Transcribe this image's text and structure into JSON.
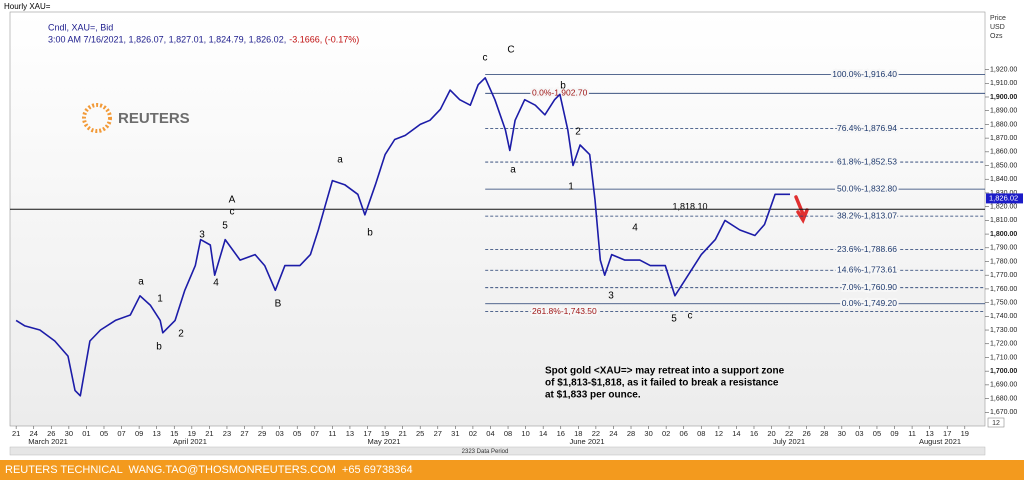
{
  "chart_data": {
    "type": "line",
    "title": "Hourly XAU=",
    "instrument": "Cndl, XAU=, Bid",
    "quote": "3:00 AM 7/16/2021, 1,826.07, 1,827.01, 1,824.79, 1,826.02,",
    "change": "-3.1666, (-0.17%)",
    "axis_unit": [
      "Price",
      "USD",
      "Ozs"
    ],
    "logo": "REUTERS",
    "color": "#1c1ca8",
    "x": [
      0,
      1,
      2.7,
      4.4,
      5.9,
      6.7,
      7.3,
      8.4,
      9.6,
      11.3,
      13,
      14.1,
      15.3,
      16.4,
      16.7,
      18.1,
      19.2,
      20.4,
      21,
      22.1,
      22.6,
      23.8,
      25.5,
      27.2,
      28.3,
      29.5,
      30.6,
      32.3,
      33.5,
      34.4,
      35.2,
      36,
      37.4,
      38.9,
      39.7,
      40.9,
      42,
      43.1,
      44.3,
      46,
      47.1,
      48.3,
      49.4,
      50.5,
      51.7,
      52.6,
      53.4,
      54.5,
      55.7,
      56.2,
      56.8,
      57.9,
      59.1,
      60.2,
      61.3,
      61.9,
      62.8,
      63.4,
      64.2,
      65.3,
      65.9,
      66.5,
      67,
      67.8,
      69.3,
      71,
      72.2,
      73.9,
      75,
      76.1,
      78,
      79.6,
      80.7,
      82.4,
      84.1,
      85.2,
      86.4,
      88.1
    ],
    "values": [
      1737,
      1733,
      1730,
      1722,
      1711,
      1686,
      1682,
      1722,
      1730,
      1737,
      1741,
      1755,
      1748,
      1737,
      1728,
      1737,
      1759,
      1777,
      1796,
      1792,
      1770,
      1796,
      1781,
      1785,
      1777,
      1759,
      1777,
      1777,
      1785,
      1803,
      1821,
      1839,
      1836,
      1829,
      1814,
      1836,
      1858,
      1869,
      1872,
      1880,
      1883,
      1891,
      1905,
      1898,
      1894,
      1909,
      1914,
      1898,
      1876,
      1861,
      1883,
      1898,
      1894,
      1887,
      1898,
      1902,
      1876,
      1850,
      1865,
      1858,
      1825,
      1781,
      1770,
      1785,
      1781,
      1781,
      1777,
      1777,
      1755,
      1766,
      1785,
      1796,
      1810,
      1803,
      1799,
      1807,
      1829,
      1829
    ],
    "xlim": [
      -0.7,
      110.3
    ],
    "ylim": [
      1660,
      1962
    ],
    "xticks": [
      {
        "value": 0,
        "label": "21"
      },
      {
        "value": 2,
        "label": "24"
      },
      {
        "value": 4,
        "label": "26"
      },
      {
        "value": 6,
        "label": "30"
      },
      {
        "value": 8,
        "label": "01"
      },
      {
        "value": 10,
        "label": "05"
      },
      {
        "value": 12,
        "label": "07"
      },
      {
        "value": 14,
        "label": "09"
      },
      {
        "value": 16,
        "label": "13"
      },
      {
        "value": 18,
        "label": "15"
      },
      {
        "value": 20,
        "label": "19"
      },
      {
        "value": 22,
        "label": "21"
      },
      {
        "value": 24,
        "label": "23"
      },
      {
        "value": 26,
        "label": "27"
      },
      {
        "value": 28,
        "label": "29"
      },
      {
        "value": 30,
        "label": "03"
      },
      {
        "value": 32,
        "label": "05"
      },
      {
        "value": 34,
        "label": "07"
      },
      {
        "value": 36,
        "label": "11"
      },
      {
        "value": 38,
        "label": "13"
      },
      {
        "value": 40,
        "label": "17"
      },
      {
        "value": 42,
        "label": "19"
      },
      {
        "value": 44,
        "label": "21"
      },
      {
        "value": 46,
        "label": "25"
      },
      {
        "value": 48,
        "label": "27"
      },
      {
        "value": 50,
        "label": "31"
      },
      {
        "value": 52,
        "label": "02"
      },
      {
        "value": 54,
        "label": "04"
      },
      {
        "value": 56,
        "label": "08"
      },
      {
        "value": 58,
        "label": "10"
      },
      {
        "value": 60,
        "label": "14"
      },
      {
        "value": 62,
        "label": "16"
      },
      {
        "value": 64,
        "label": "18"
      },
      {
        "value": 66,
        "label": "22"
      },
      {
        "value": 68,
        "label": "24"
      },
      {
        "value": 70,
        "label": "28"
      },
      {
        "value": 72,
        "label": "30"
      },
      {
        "value": 74,
        "label": "02"
      },
      {
        "value": 76,
        "label": "06"
      },
      {
        "value": 78,
        "label": "08"
      },
      {
        "value": 80,
        "label": "12"
      },
      {
        "value": 82,
        "label": "14"
      },
      {
        "value": 84,
        "label": "16"
      },
      {
        "value": 86,
        "label": "20"
      },
      {
        "value": 88,
        "label": "22"
      },
      {
        "value": 90,
        "label": "26"
      },
      {
        "value": 92,
        "label": "28"
      },
      {
        "value": 94,
        "label": "30"
      },
      {
        "value": 96,
        "label": "03"
      },
      {
        "value": 98,
        "label": "05"
      },
      {
        "value": 100,
        "label": "09"
      },
      {
        "value": 102,
        "label": "11"
      },
      {
        "value": 104,
        "label": "13"
      },
      {
        "value": 106,
        "label": "17"
      },
      {
        "value": 108,
        "label": "19"
      }
    ],
    "yticks": [
      {
        "value": 1670,
        "label": "1,670.00"
      },
      {
        "value": 1680,
        "label": "1,680.00"
      },
      {
        "value": 1690,
        "label": "1,690.00"
      },
      {
        "value": 1700,
        "label": "1,700.00"
      },
      {
        "value": 1710,
        "label": "1,710.00"
      },
      {
        "value": 1720,
        "label": "1,720.00"
      },
      {
        "value": 1730,
        "label": "1,730.00"
      },
      {
        "value": 1740,
        "label": "1,740.00"
      },
      {
        "value": 1750,
        "label": "1,750.00"
      },
      {
        "value": 1760,
        "label": "1,760.00"
      },
      {
        "value": 1770,
        "label": "1,770.00"
      },
      {
        "value": 1780,
        "label": "1,780.00"
      },
      {
        "value": 1790,
        "label": "1,790.00"
      },
      {
        "value": 1800,
        "label": "1,800.00"
      },
      {
        "value": 1810,
        "label": "1,810.00"
      },
      {
        "value": 1820,
        "label": "1,820.00"
      },
      {
        "value": 1830,
        "label": "1,830.00"
      },
      {
        "value": 1840,
        "label": "1,840.00"
      },
      {
        "value": 1850,
        "label": "1,850.00"
      },
      {
        "value": 1860,
        "label": "1,860.00"
      },
      {
        "value": 1870,
        "label": "1,870.00"
      },
      {
        "value": 1880,
        "label": "1,880.00"
      },
      {
        "value": 1890,
        "label": "1,890.00"
      },
      {
        "value": 1900,
        "label": "1,900.00"
      },
      {
        "value": 1910,
        "label": "1,910.00"
      },
      {
        "value": 1920,
        "label": "1,920.00"
      }
    ],
    "months": [
      "March 2021",
      "April 2021",
      "May 2021",
      "June 2021",
      "July 2021",
      "August 2021"
    ],
    "last_price": {
      "value": 1826.02,
      "label": "1,826.02"
    },
    "hline": {
      "value": 1818.1,
      "label": "1,818.10"
    },
    "fib_levels": [
      {
        "value": 1916.4,
        "label": "100.0%-1,916.40",
        "dashed": false,
        "color": "#1f3a6e"
      },
      {
        "value": 1902.7,
        "label": "0.0%-1,902.70",
        "dashed": false,
        "color": "#a01818"
      },
      {
        "value": 1876.94,
        "label": "76.4%-1,876.94",
        "dashed": true,
        "color": "#1f3a6e"
      },
      {
        "value": 1852.53,
        "label": "61.8%-1,852.53",
        "dashed": true,
        "color": "#1f3a6e"
      },
      {
        "value": 1832.8,
        "label": "50.0%-1,832.80",
        "dashed": false,
        "color": "#1f3a6e"
      },
      {
        "value": 1813.07,
        "label": "38.2%-1,813.07",
        "dashed": true,
        "color": "#1f3a6e"
      },
      {
        "value": 1788.66,
        "label": "23.6%-1,788.66",
        "dashed": true,
        "color": "#1f3a6e"
      },
      {
        "value": 1773.61,
        "label": "14.6%-1,773.61",
        "dashed": true,
        "color": "#1f3a6e"
      },
      {
        "value": 1760.9,
        "label": "7.0%-1,760.90",
        "dashed": true,
        "color": "#1f3a6e"
      },
      {
        "value": 1749.2,
        "label": "0.0%-1,749.20",
        "dashed": false,
        "color": "#1f3a6e"
      },
      {
        "value": 1743.5,
        "label": "261.8%-1,743.50",
        "dashed": true,
        "color": "#a01818"
      }
    ],
    "wave_labels": [
      "c",
      "C",
      "b",
      "2",
      "a",
      "1",
      "4",
      "3",
      "5",
      "c",
      "A",
      "c",
      "5",
      "3",
      "4",
      "a",
      "1",
      "b",
      "2",
      "B",
      "b",
      "a"
    ],
    "note": [
      "Spot gold <XAU=> may retreat into a support zone",
      "of $1,813-$1,818, as it failed to break a resistance",
      "at $1,833 per ounce."
    ],
    "data_period": "2323 Data Period",
    "corner": "12",
    "footer": "REUTERS TECHNICAL  WANG.TAO@THOSMONREUTERS.COM  +65 69738364"
  }
}
